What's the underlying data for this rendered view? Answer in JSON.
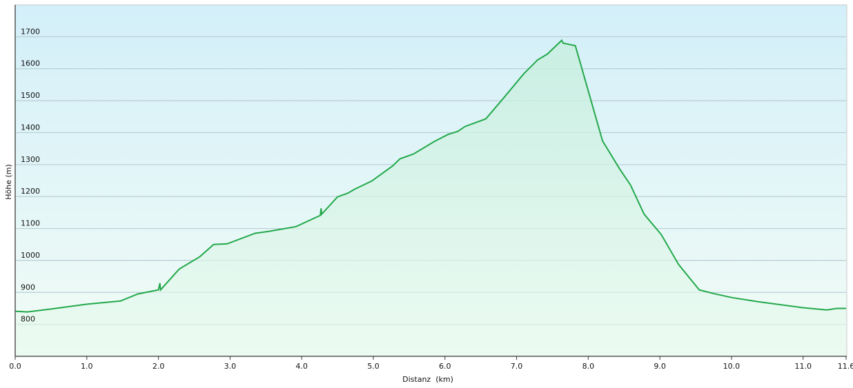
{
  "chart_data": {
    "type": "area",
    "title": "",
    "xlabel": "Distanz  (km)",
    "ylabel": "Höhe (m)",
    "xlim": [
      0,
      11.6
    ],
    "ylim": [
      700,
      1800
    ],
    "x_ticks": [
      0,
      1,
      2,
      3,
      4,
      5,
      6,
      7,
      8,
      9,
      10,
      11,
      11.6
    ],
    "x_tick_labels": [
      "0.0",
      "1.0",
      "2.0",
      "3.0",
      "4.0",
      "5.0",
      "6.0",
      "7.0",
      "8.0",
      "9.0",
      "10.0",
      "11.0",
      "11.6"
    ],
    "y_ticks": [
      800,
      900,
      1000,
      1100,
      1200,
      1300,
      1400,
      1500,
      1600,
      1700
    ],
    "y_tick_labels": [
      "800",
      "900",
      "1000",
      "1100",
      "1200",
      "1300",
      "1400",
      "1500",
      "1600",
      "1700"
    ],
    "grid": true,
    "colors": {
      "line": "#22a84a",
      "fill": "#c8f0d6",
      "bg_top": "#d3eff9",
      "bg_bottom": "#f2fcf6",
      "grid": "#b9cdd3"
    },
    "series": [
      {
        "x": [
          0,
          0.17,
          0.5,
          1.0,
          1.47,
          1.71,
          2.0,
          2.02,
          2.03,
          2.29,
          2.58,
          2.77,
          2.96,
          3.35,
          3.54,
          3.92,
          4.26,
          4.27,
          4.28,
          4.5,
          4.64,
          4.74,
          4.98,
          5.27,
          5.37,
          5.56,
          5.85,
          6.04,
          6.18,
          6.28,
          6.57,
          6.81,
          7.1,
          7.29,
          7.43,
          7.63,
          7.65,
          7.82,
          8.2,
          8.44,
          8.59,
          8.78,
          9.02,
          9.26,
          9.55,
          9.74,
          10.0,
          10.37,
          11.0,
          11.33,
          11.47,
          11.6
        ],
        "y": [
          841,
          839,
          848,
          863,
          873,
          895,
          908,
          929,
          908,
          973,
          1012,
          1050,
          1052,
          1085,
          1091,
          1106,
          1141,
          1163,
          1145,
          1199,
          1210,
          1223,
          1249,
          1296,
          1318,
          1333,
          1372,
          1394,
          1404,
          1419,
          1443,
          1506,
          1584,
          1627,
          1646,
          1689,
          1680,
          1672,
          1374,
          1286,
          1236,
          1145,
          1081,
          988,
          908,
          897,
          884,
          871,
          852,
          845,
          850,
          850
        ]
      }
    ]
  }
}
